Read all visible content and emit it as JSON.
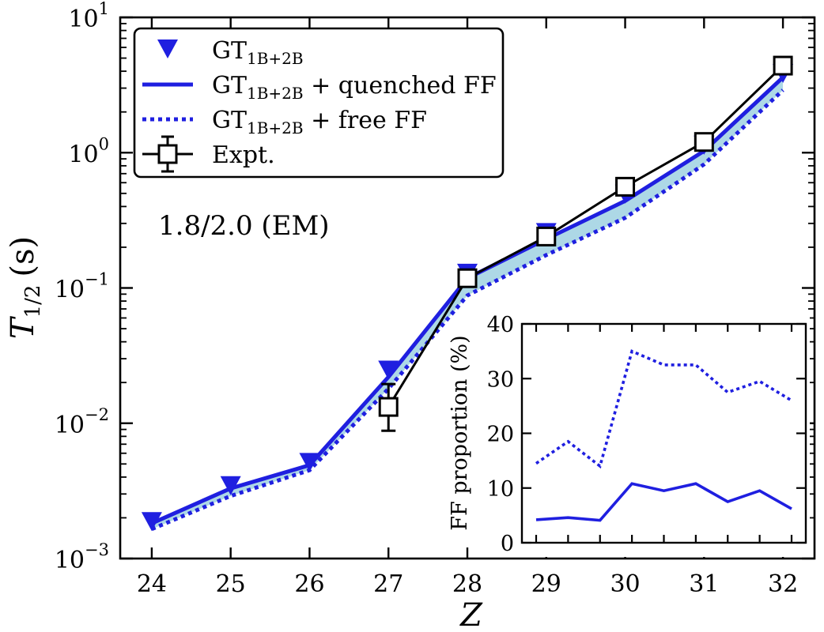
{
  "chart_data": [
    {
      "type": "line",
      "title": "",
      "xlabel": "Z",
      "ylabel": {
        "main": "T",
        "sub": "1/2",
        "unit": "(s)"
      },
      "yscale": "log",
      "ylim": [
        0.001,
        10
      ],
      "xlim": [
        23.6,
        32.4
      ],
      "x_ticks": [
        24,
        25,
        26,
        27,
        28,
        29,
        30,
        31,
        32
      ],
      "y_ticks": [
        {
          "value": 0.001,
          "base": "10",
          "exp": "−3"
        },
        {
          "value": 0.01,
          "base": "10",
          "exp": "−2"
        },
        {
          "value": 0.1,
          "base": "10",
          "exp": "−1"
        },
        {
          "value": 1,
          "base": "10",
          "exp": "0"
        },
        {
          "value": 10,
          "base": "10",
          "exp": "1"
        }
      ],
      "annotation": "1.8/2.0 (EM)",
      "legend_position": "top-left",
      "series": [
        {
          "key": "gt",
          "legend": {
            "main": "GT",
            "sub": "1B+2B",
            "suffix": ""
          },
          "marker": "triangle-down",
          "color": "#1f1fe0",
          "x": [
            24,
            25,
            26,
            27,
            28,
            29,
            30,
            31,
            32
          ],
          "y": [
            0.0019,
            0.0035,
            0.0052,
            0.025,
            0.13,
            0.26,
            0.5,
            1.15,
            3.9
          ]
        },
        {
          "key": "quenched",
          "legend": {
            "main": "GT",
            "sub": "1B+2B",
            "suffix": " + quenched FF"
          },
          "line": "solid",
          "color": "#1f1fe0",
          "x": [
            24,
            25,
            26,
            27,
            28,
            29,
            30,
            31,
            32
          ],
          "y": [
            0.00182,
            0.0033,
            0.0049,
            0.022,
            0.118,
            0.23,
            0.44,
            1.03,
            3.6
          ]
        },
        {
          "key": "free",
          "legend": {
            "main": "GT",
            "sub": "1B+2B",
            "suffix": " + free FF"
          },
          "line": "dotted",
          "color": "#1f1fe0",
          "x": [
            24,
            25,
            26,
            27,
            28,
            29,
            30,
            31,
            32
          ],
          "y": [
            0.00165,
            0.0029,
            0.0045,
            0.018,
            0.088,
            0.175,
            0.33,
            0.82,
            2.9
          ]
        },
        {
          "key": "expt",
          "legend": {
            "main": "Expt.",
            "sub": "",
            "suffix": ""
          },
          "marker": "square-open",
          "color": "#000000",
          "x": [
            27,
            28,
            29,
            30,
            31,
            32
          ],
          "y": [
            0.0132,
            0.118,
            0.24,
            0.56,
            1.2,
            4.4
          ],
          "err_low": [
            0.0088,
            null,
            null,
            null,
            null,
            null
          ],
          "err_high": [
            0.0195,
            null,
            null,
            null,
            null,
            null
          ]
        }
      ],
      "band_color": "#add8e6"
    },
    {
      "type": "line",
      "inset": true,
      "ylabel": "FF proportion (%)",
      "ylim": [
        0,
        40
      ],
      "y_ticks": [
        0,
        10,
        20,
        30,
        40
      ],
      "series": [
        {
          "key": "inset_quenched",
          "line": "solid",
          "color": "#1f1fe0",
          "y": [
            4.2,
            4.6,
            4.1,
            10.8,
            9.5,
            10.8,
            7.5,
            9.5,
            6.2
          ]
        },
        {
          "key": "inset_free",
          "line": "dotted",
          "color": "#1f1fe0",
          "y": [
            14.5,
            18.5,
            14.0,
            35.0,
            32.5,
            32.5,
            27.5,
            29.5,
            26.0
          ]
        }
      ]
    }
  ]
}
